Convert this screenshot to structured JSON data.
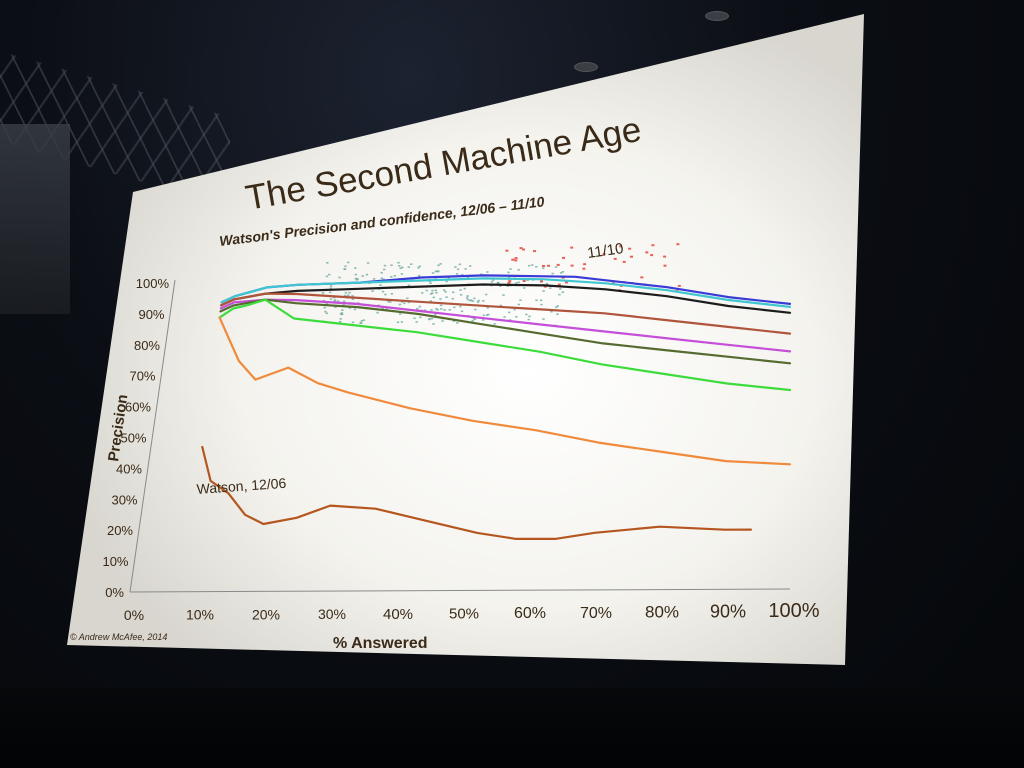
{
  "slide": {
    "title": "The Second Machine Age",
    "subtitle": "Watson's Precision and confidence, 12/06 – 11/10",
    "copyright": "© Andrew McAfee, 2014"
  },
  "chart_data": {
    "type": "line",
    "title": "Watson's Precision and confidence, 12/06 – 11/10",
    "xlabel": "% Answered",
    "ylabel": "Precision",
    "xlim": [
      0,
      100
    ],
    "ylim": [
      0,
      100
    ],
    "x_ticks": [
      "0%",
      "10%",
      "20%",
      "30%",
      "40%",
      "50%",
      "60%",
      "70%",
      "80%",
      "90%",
      "100%"
    ],
    "y_ticks": [
      "0%",
      "10%",
      "20%",
      "30%",
      "40%",
      "50%",
      "60%",
      "70%",
      "80%",
      "90%",
      "100%"
    ],
    "annotations": [
      "11/10",
      "Watson, 12/06"
    ],
    "series": [
      {
        "name": "11/10",
        "color": "#3a3ad6",
        "x": [
          8,
          10,
          15,
          20,
          30,
          40,
          50,
          60,
          65,
          70,
          80,
          90,
          100
        ],
        "y": [
          94,
          96,
          99,
          100,
          101,
          103,
          104,
          104,
          104,
          103,
          101,
          98,
          96
        ]
      },
      {
        "color": "#3fc6d0",
        "x": [
          8,
          10,
          15,
          20,
          30,
          40,
          50,
          60,
          70,
          80,
          90,
          100
        ],
        "y": [
          94,
          96,
          99,
          100,
          101,
          102,
          103,
          103,
          102,
          100,
          97,
          95
        ]
      },
      {
        "color": "#1c1c1c",
        "x": [
          8,
          10,
          15,
          20,
          30,
          40,
          50,
          60,
          70,
          80,
          90,
          100
        ],
        "y": [
          93,
          95,
          97,
          98,
          99,
          100,
          101,
          101,
          100,
          98,
          95,
          93
        ]
      },
      {
        "color": "#b0553c",
        "x": [
          8,
          10,
          15,
          20,
          30,
          40,
          50,
          60,
          70,
          80,
          90,
          100
        ],
        "y": [
          93,
          95,
          97,
          97,
          96,
          95,
          94,
          93,
          92,
          90,
          88,
          86
        ]
      },
      {
        "color": "#c54fd8",
        "x": [
          8,
          10,
          15,
          20,
          30,
          40,
          50,
          60,
          70,
          80,
          90,
          100
        ],
        "y": [
          92,
          94,
          95,
          95,
          94,
          92,
          90,
          88,
          86,
          84,
          82,
          80
        ]
      },
      {
        "color": "#556b2f",
        "x": [
          8,
          10,
          15,
          20,
          30,
          40,
          50,
          60,
          70,
          80,
          90,
          100
        ],
        "y": [
          91,
          93,
          95,
          94,
          93,
          91,
          88,
          85,
          82,
          80,
          78,
          76
        ]
      },
      {
        "color": "#3cdc3c",
        "x": [
          8,
          10,
          12,
          15,
          20,
          30,
          40,
          50,
          60,
          70,
          80,
          90,
          100
        ],
        "y": [
          89,
          92,
          93,
          95,
          89,
          87,
          85,
          82,
          79,
          75,
          72,
          69,
          67
        ]
      },
      {
        "color": "#f08a3c",
        "x": [
          8,
          10,
          12,
          15,
          20,
          25,
          30,
          40,
          50,
          60,
          70,
          80,
          90,
          100
        ],
        "y": [
          89,
          82,
          75,
          69,
          73,
          68,
          65,
          60,
          56,
          53,
          49,
          46,
          43,
          42
        ]
      },
      {
        "name": "Watson, 12/06",
        "color": "#b5561f",
        "x": [
          8,
          10,
          13,
          16,
          19,
          24,
          29,
          36,
          44,
          52,
          58,
          64,
          70,
          80,
          90,
          94
        ],
        "y": [
          47,
          36,
          32,
          25,
          22,
          24,
          28,
          27,
          23,
          19,
          17,
          17,
          19,
          21,
          20,
          20
        ]
      }
    ]
  }
}
